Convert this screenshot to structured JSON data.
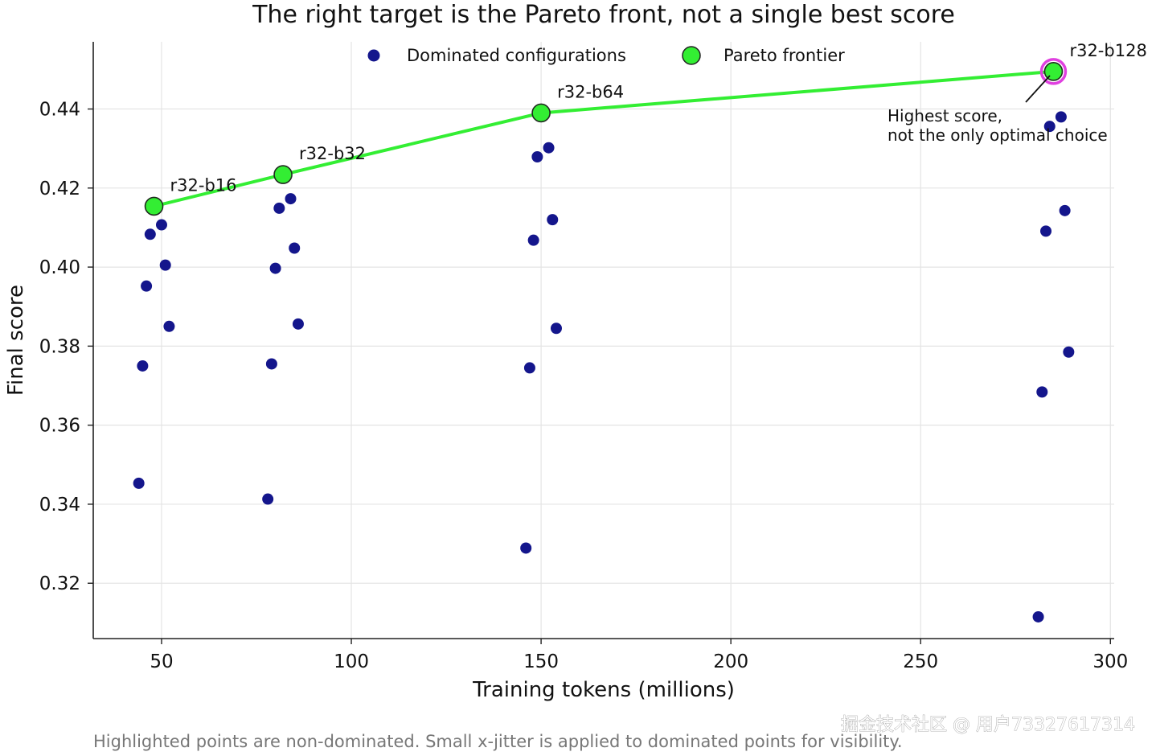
{
  "chart_data": {
    "type": "scatter",
    "title": "The right target is the Pareto front, not a single best score",
    "xlabel": "Training tokens (millions)",
    "ylabel": "Final score",
    "xlim": [
      32,
      301
    ],
    "ylim": [
      0.306,
      0.457
    ],
    "xticks": [
      50,
      100,
      150,
      200,
      250,
      300
    ],
    "yticks": [
      0.32,
      0.34,
      0.36,
      0.38,
      0.4,
      0.42,
      0.44
    ],
    "xtick_labels": [
      "50",
      "100",
      "150",
      "200",
      "250",
      "300"
    ],
    "ytick_labels": [
      "0.32",
      "0.34",
      "0.36",
      "0.38",
      "0.40",
      "0.42",
      "0.44"
    ],
    "grid": true,
    "legend_position": "top-center",
    "series": [
      {
        "name": "Dominated configurations",
        "color": "#14168c",
        "marker": "circle",
        "points": [
          {
            "x": 44.0,
            "y": 0.3453
          },
          {
            "x": 45.0,
            "y": 0.375
          },
          {
            "x": 46.0,
            "y": 0.3952
          },
          {
            "x": 47.0,
            "y": 0.4083
          },
          {
            "x": 50.0,
            "y": 0.4107
          },
          {
            "x": 51.0,
            "y": 0.4005
          },
          {
            "x": 52.0,
            "y": 0.385
          },
          {
            "x": 78.0,
            "y": 0.3413
          },
          {
            "x": 79.0,
            "y": 0.3755
          },
          {
            "x": 80.0,
            "y": 0.3997
          },
          {
            "x": 81.0,
            "y": 0.4149
          },
          {
            "x": 84.0,
            "y": 0.4173
          },
          {
            "x": 85.0,
            "y": 0.4048
          },
          {
            "x": 86.0,
            "y": 0.3856
          },
          {
            "x": 146.0,
            "y": 0.3289
          },
          {
            "x": 147.0,
            "y": 0.3745
          },
          {
            "x": 148.0,
            "y": 0.4068
          },
          {
            "x": 149.0,
            "y": 0.4279
          },
          {
            "x": 152.0,
            "y": 0.4302
          },
          {
            "x": 153.0,
            "y": 0.412
          },
          {
            "x": 154.0,
            "y": 0.3845
          },
          {
            "x": 281.0,
            "y": 0.3115
          },
          {
            "x": 282.0,
            "y": 0.3684
          },
          {
            "x": 283.0,
            "y": 0.4091
          },
          {
            "x": 284.0,
            "y": 0.4356
          },
          {
            "x": 287.0,
            "y": 0.438
          },
          {
            "x": 288.0,
            "y": 0.4143
          },
          {
            "x": 289.0,
            "y": 0.3785
          }
        ]
      },
      {
        "name": "Pareto frontier",
        "color": "#33ee33",
        "marker": "circle",
        "line": true,
        "points": [
          {
            "x": 48.0,
            "y": 0.4154,
            "label": "r32-b16"
          },
          {
            "x": 82.0,
            "y": 0.4234,
            "label": "r32-b32"
          },
          {
            "x": 150.0,
            "y": 0.439,
            "label": "r32-b64"
          },
          {
            "x": 285.0,
            "y": 0.4495,
            "label": "r32-b128",
            "highlight_color": "#e040e0"
          }
        ]
      }
    ],
    "annotation": {
      "lines": [
        "Highest score,",
        "not the only optimal choice"
      ],
      "points_to": "r32-b128"
    },
    "caption": "Highlighted points are non-dominated. Small x-jitter is applied to dominated points for visibility."
  },
  "watermark": "掘金技术社区 @ 用户73327617314"
}
